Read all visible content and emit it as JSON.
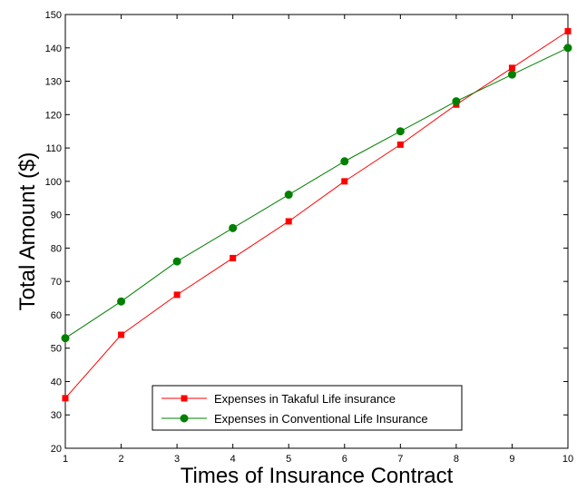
{
  "chart_data": {
    "type": "line",
    "title": "",
    "xlabel": "Times of Insurance Contract",
    "ylabel": "Total Amount ($)",
    "xlim": [
      1,
      10
    ],
    "ylim": [
      20,
      150
    ],
    "x_ticks": [
      1,
      2,
      3,
      4,
      5,
      6,
      7,
      8,
      9,
      10
    ],
    "y_ticks": [
      20,
      30,
      40,
      50,
      60,
      70,
      80,
      90,
      100,
      110,
      120,
      130,
      140,
      150
    ],
    "grid": false,
    "legend_position": "bottom-right",
    "x": [
      1,
      2,
      3,
      4,
      5,
      6,
      7,
      8,
      9,
      10
    ],
    "series": [
      {
        "name": "Expenses in Takaful Life insurance",
        "color": "#ff0000",
        "marker": "square",
        "values": [
          35,
          54,
          66,
          77,
          88,
          100,
          111,
          123,
          134,
          145
        ]
      },
      {
        "name": "Expenses in Conventional Life Insurance",
        "color": "#008000",
        "marker": "circle",
        "values": [
          53,
          64,
          76,
          86,
          96,
          106,
          115,
          124,
          132,
          140
        ]
      }
    ]
  }
}
